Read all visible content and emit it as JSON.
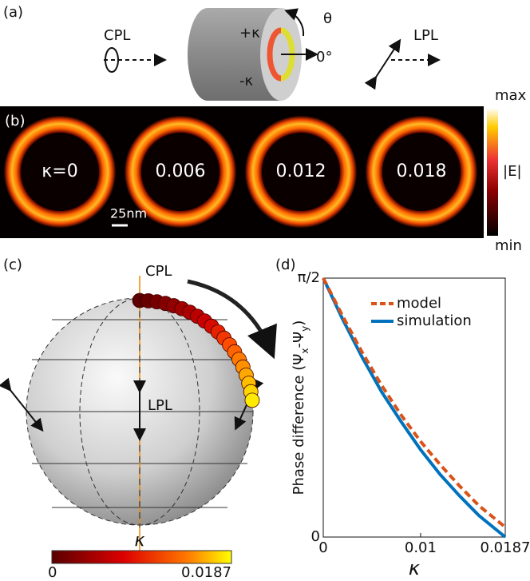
{
  "panel_a": {
    "label": "(a)",
    "cpl": "CPL",
    "lpl": "LPL",
    "plus_kappa": "+κ",
    "minus_kappa": "-κ",
    "theta": "θ",
    "zero_deg": "0°"
  },
  "panel_b": {
    "label": "(b)",
    "ring_labels": [
      "κ=0",
      "0.006",
      "0.012",
      "0.018"
    ],
    "scale_bar": "25nm",
    "colorbar_max": "max",
    "colorbar_min": "min",
    "colorbar_label": "|E|"
  },
  "panel_c": {
    "label": "(c)",
    "cpl": "CPL",
    "lpl": "LPL",
    "colorbar_label": "κ",
    "colorbar_ticks": [
      "0",
      "0.0187"
    ]
  },
  "chart_data": {
    "type": "line",
    "panel_label": "(d)",
    "ylabel": [
      "Phase difference (Ψ",
      "x",
      "-Ψ",
      "y",
      ")"
    ],
    "xlabel": "κ",
    "x": [
      0,
      0.002,
      0.004,
      0.006,
      0.008,
      0.01,
      0.012,
      0.014,
      0.016,
      0.0187
    ],
    "series": [
      {
        "name": "model",
        "color": "#d95319",
        "dashed": true,
        "values": [
          1.5708,
          1.34,
          1.12,
          0.92,
          0.74,
          0.58,
          0.44,
          0.31,
          0.19,
          0.06
        ]
      },
      {
        "name": "simulation",
        "color": "#0072bd",
        "dashed": false,
        "values": [
          1.5708,
          1.32,
          1.09,
          0.88,
          0.7,
          0.53,
          0.38,
          0.25,
          0.13,
          0
        ]
      }
    ],
    "xlim": [
      0,
      0.0187
    ],
    "ylim": [
      0,
      1.5708
    ],
    "xticks": [
      0,
      0.01,
      0.0187
    ],
    "yticks": [
      0,
      {
        "value": 1.5708,
        "label": "π/2"
      }
    ],
    "legend": "upper-right"
  }
}
